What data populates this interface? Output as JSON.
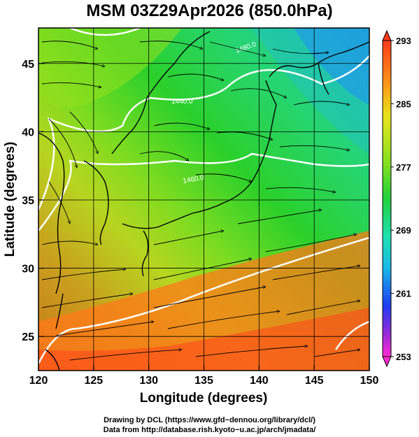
{
  "title": "MSM 03Z29Apr2026 (850.0hPa)",
  "map": {
    "lon_range": [
      120,
      150
    ],
    "lat_range": [
      22.5,
      47.6
    ],
    "x_ticks": [
      "120",
      "125",
      "130",
      "135",
      "140",
      "145",
      "150"
    ],
    "y_ticks": [
      "25",
      "30",
      "35",
      "40",
      "45"
    ],
    "x_label": "Longitude (degrees)",
    "y_label": "Latitude  (degrees)",
    "grid": true,
    "contour_labels": [
      "1480.0",
      "1440.0",
      "1460.0"
    ],
    "colors": {
      "cold": "#1e90ff",
      "cool": "#22d86e",
      "mid": "#2bd12b",
      "warm": "#d7e817",
      "hot": "#ff7a18",
      "hottest": "#ff4a1a",
      "contour": "#ffffff",
      "coast": "#000000"
    }
  },
  "colorbar": {
    "labels": [
      "293",
      "285",
      "277",
      "269",
      "261",
      "253"
    ],
    "min": 253,
    "max": 293
  },
  "credits": {
    "line1": "Drawing by DCL (https://www.gfd−dennou.org/library/dcl/)",
    "line2": "Data from http://database.rish.kyoto−u.ac.jp/arch/jmadata/"
  }
}
